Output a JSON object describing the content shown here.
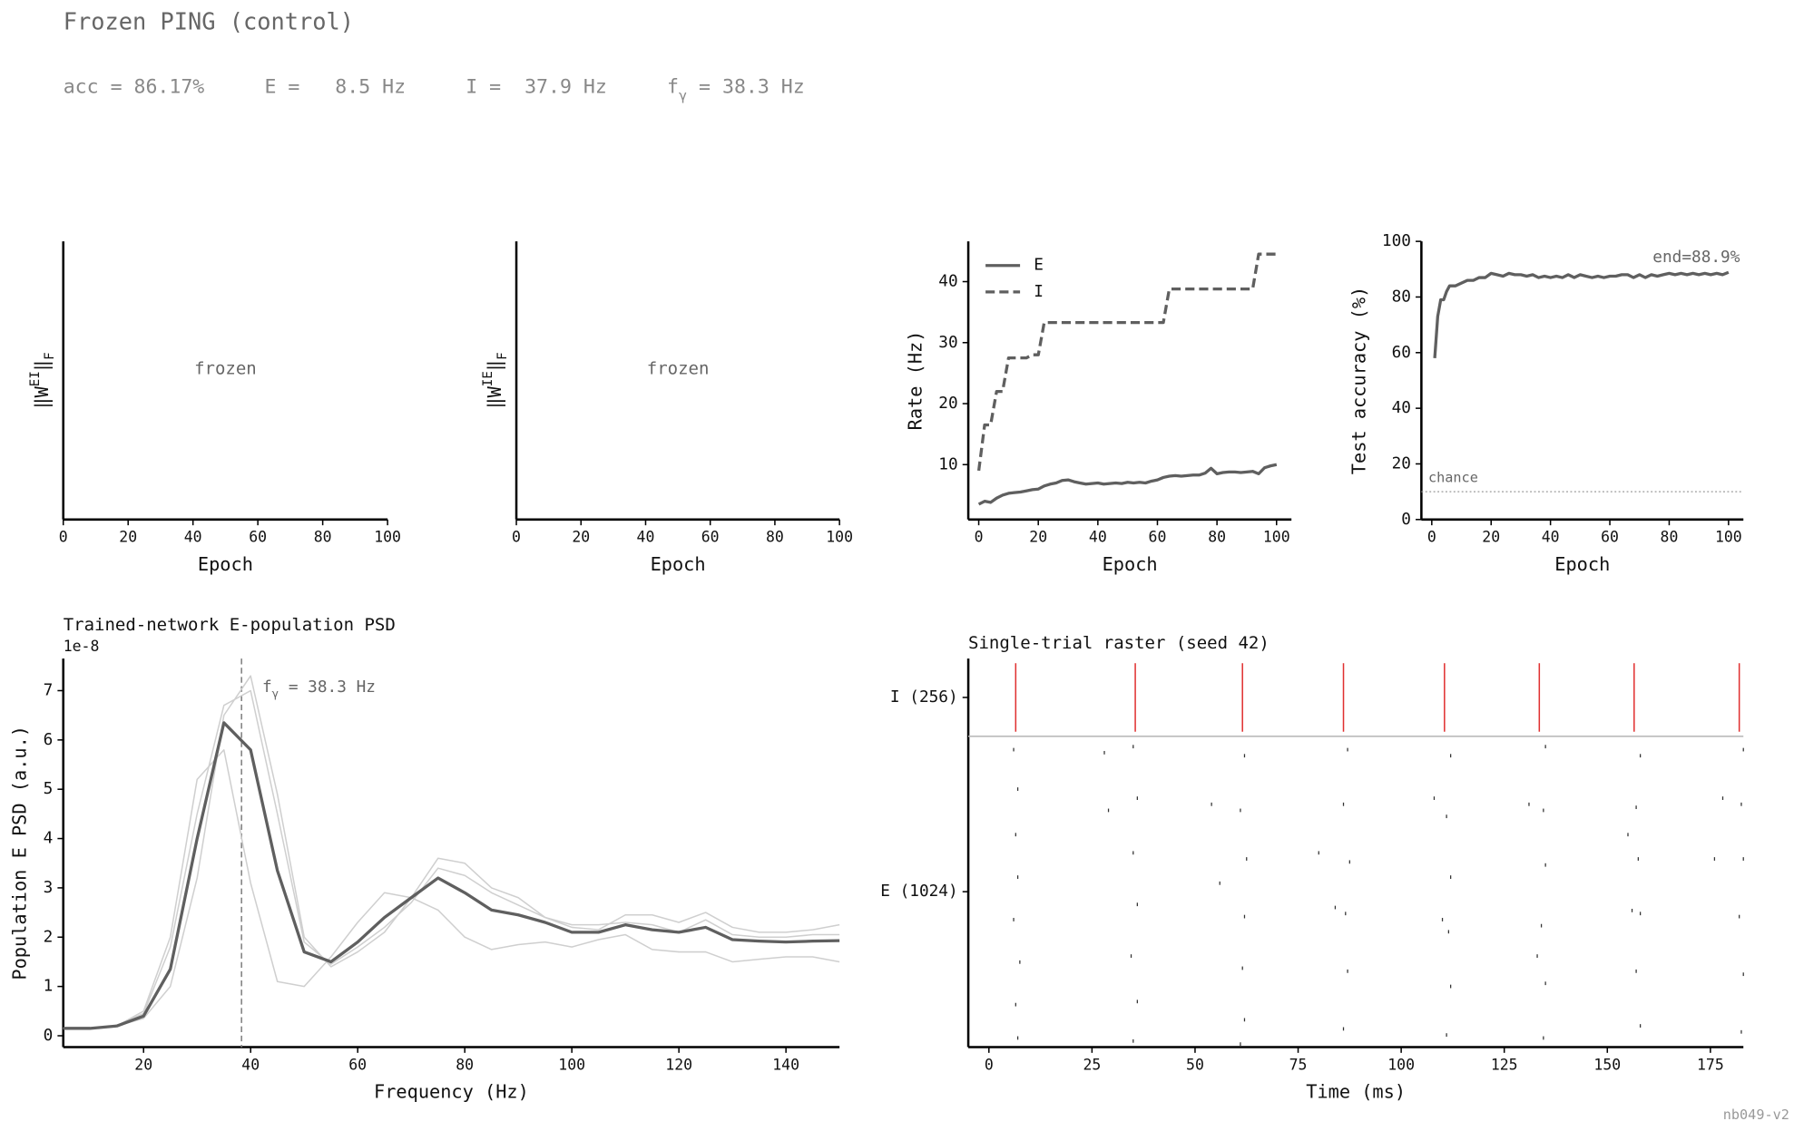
{
  "header": {
    "title": "Frozen PING (control)",
    "stats": [
      "acc = 86.17%",
      "E =   8.5 Hz",
      "I =  37.9 Hz",
      [
        {
          "text": "f"
        },
        {
          "text": "γ",
          "shift": "sub"
        },
        {
          "text": " = 38.3 Hz"
        }
      ]
    ]
  },
  "footer": "nb049-v2",
  "chart_data": [
    {
      "type": "line",
      "xlabel": "Epoch",
      "ylabel": [
        {
          "text": "‖W"
        },
        {
          "text": "EI",
          "shift": "sup"
        },
        {
          "text": "‖"
        },
        {
          "text": "F",
          "shift": "sub"
        }
      ],
      "xlim": [
        0,
        100
      ],
      "xticks": [
        0,
        20,
        40,
        60,
        80,
        100
      ],
      "annotation": "frozen",
      "series": []
    },
    {
      "type": "line",
      "xlabel": "Epoch",
      "ylabel": [
        {
          "text": "‖W"
        },
        {
          "text": "IE",
          "shift": "sup"
        },
        {
          "text": "‖"
        },
        {
          "text": "F",
          "shift": "sub"
        }
      ],
      "xlim": [
        0,
        100
      ],
      "xticks": [
        0,
        20,
        40,
        60,
        80,
        100
      ],
      "annotation": "frozen",
      "series": []
    },
    {
      "type": "line",
      "xlabel": "Epoch",
      "ylabel": "Rate (Hz)",
      "xlim": [
        -3.5,
        105
      ],
      "xticks": [
        0,
        20,
        40,
        60,
        80,
        100
      ],
      "ylim": [
        1,
        46.6
      ],
      "yticks": [
        10,
        20,
        30,
        40
      ],
      "legend": "upper left",
      "x": [
        0,
        2,
        4,
        6,
        8,
        10,
        12,
        14,
        16,
        18,
        20,
        22,
        24,
        26,
        28,
        30,
        32,
        34,
        36,
        38,
        40,
        42,
        44,
        46,
        48,
        50,
        52,
        54,
        56,
        58,
        60,
        62,
        64,
        66,
        68,
        70,
        72,
        74,
        76,
        78,
        80,
        82,
        84,
        86,
        88,
        90,
        92,
        94,
        96,
        98,
        100
      ],
      "series": [
        {
          "name": "E",
          "color": "#5f5f5f",
          "dash": false,
          "values": [
            3.5,
            4,
            3.8,
            4.5,
            5,
            5.3,
            5.4,
            5.5,
            5.7,
            5.9,
            6,
            6.5,
            6.8,
            7,
            7.4,
            7.5,
            7.2,
            7,
            6.8,
            6.9,
            7,
            6.8,
            6.9,
            7,
            6.9,
            7.1,
            7,
            7.1,
            7,
            7.3,
            7.5,
            7.9,
            8.1,
            8.2,
            8.1,
            8.2,
            8.3,
            8.3,
            8.6,
            9.4,
            8.5,
            8.7,
            8.8,
            8.8,
            8.7,
            8.8,
            8.9,
            8.5,
            9.5,
            9.8,
            10
          ]
        },
        {
          "name": "I",
          "color": "#5f5f5f",
          "dash": true,
          "values": [
            9,
            16.5,
            16.5,
            22,
            22,
            27.5,
            27.5,
            27.5,
            27.5,
            28,
            28,
            33.3,
            33.3,
            33.3,
            33.3,
            33.3,
            33.3,
            33.3,
            33.3,
            33.3,
            33.3,
            33.3,
            33.3,
            33.3,
            33.3,
            33.3,
            33.3,
            33.3,
            33.3,
            33.3,
            33.3,
            33.3,
            38.8,
            38.8,
            38.8,
            38.8,
            38.8,
            38.8,
            38.8,
            38.8,
            38.8,
            38.8,
            38.8,
            38.8,
            38.8,
            38.8,
            38.8,
            44.5,
            44.5,
            44.5,
            44.5
          ]
        }
      ]
    },
    {
      "type": "line",
      "xlabel": "Epoch",
      "ylabel": "Test accuracy (%)",
      "xlim": [
        -3.5,
        105
      ],
      "xticks": [
        0,
        20,
        40,
        60,
        80,
        100
      ],
      "ylim": [
        0,
        100
      ],
      "yticks": [
        0,
        20,
        40,
        60,
        80,
        100
      ],
      "chance_level": 10,
      "chance_label": "chance",
      "end_label": "end=88.9%",
      "x": [
        1,
        2,
        3,
        4,
        5,
        6,
        8,
        10,
        12,
        14,
        16,
        18,
        20,
        22,
        24,
        26,
        28,
        30,
        32,
        34,
        36,
        38,
        40,
        42,
        44,
        46,
        48,
        50,
        52,
        54,
        56,
        58,
        60,
        62,
        64,
        66,
        68,
        70,
        72,
        74,
        76,
        78,
        80,
        82,
        84,
        86,
        88,
        90,
        92,
        94,
        96,
        98,
        100
      ],
      "series": [
        {
          "color": "#5f5f5f",
          "dash": false,
          "values": [
            58,
            73,
            79,
            79,
            82,
            84,
            84,
            85,
            86,
            86,
            87,
            87,
            88.5,
            88,
            87.5,
            88.5,
            88,
            88,
            87.5,
            88,
            87,
            87.5,
            87,
            87.5,
            87,
            88,
            87,
            88,
            87.5,
            87,
            87.5,
            87,
            87.5,
            87.5,
            88,
            88,
            87,
            88,
            87,
            88,
            87.5,
            88,
            88.5,
            88,
            88.5,
            88,
            88.5,
            88,
            88.5,
            88,
            88.5,
            88,
            88.9
          ]
        }
      ]
    },
    {
      "type": "line",
      "title": "Trained-network E-population PSD",
      "offset_label": "1e-8",
      "xlabel": "Frequency (Hz)",
      "ylabel": "Population E PSD (a.u.)",
      "xlim": [
        5,
        150
      ],
      "xticks": [
        20,
        40,
        60,
        80,
        100,
        120,
        140
      ],
      "ylim": [
        -0.23,
        7.65
      ],
      "yticks": [
        0,
        1,
        2,
        3,
        4,
        5,
        6,
        7
      ],
      "vline": 38.3,
      "vline_label": [
        {
          "text": "f"
        },
        {
          "text": "γ",
          "shift": "sub"
        },
        {
          "text": " = 38.3 Hz"
        }
      ],
      "x": [
        5,
        10,
        15,
        20,
        25,
        30,
        35,
        40,
        45,
        50,
        55,
        60,
        65,
        70,
        75,
        80,
        85,
        90,
        95,
        100,
        105,
        110,
        115,
        120,
        125,
        130,
        135,
        140,
        145,
        150
      ],
      "series": [
        {
          "color": "#cfcfcf",
          "width": 1.2,
          "values": [
            0.15,
            0.15,
            0.2,
            0.5,
            2,
            5.2,
            5.8,
            3.1,
            1.1,
            1.0,
            1.6,
            2.3,
            2.9,
            2.8,
            2.55,
            2.0,
            1.75,
            1.85,
            1.9,
            1.8,
            1.95,
            2.05,
            1.75,
            1.7,
            1.7,
            1.5,
            1.55,
            1.6,
            1.6,
            1.5
          ]
        },
        {
          "color": "#cfcfcf",
          "width": 1.2,
          "values": [
            0.15,
            0.15,
            0.2,
            0.35,
            1.0,
            3.2,
            6.5,
            7.3,
            4.9,
            2.0,
            1.4,
            1.7,
            2.1,
            2.8,
            3.6,
            3.5,
            3.0,
            2.8,
            2.4,
            2.2,
            2.15,
            2.45,
            2.45,
            2.3,
            2.5,
            2.2,
            2.1,
            2.1,
            2.15,
            2.25
          ]
        },
        {
          "color": "#cfcfcf",
          "width": 1.2,
          "values": [
            0.15,
            0.15,
            0.2,
            0.45,
            1.8,
            4.5,
            6.7,
            7.0,
            4.5,
            1.9,
            1.45,
            1.8,
            2.2,
            2.7,
            3.4,
            3.25,
            2.9,
            2.65,
            2.4,
            2.25,
            2.25,
            2.3,
            2.25,
            2.1,
            2.35,
            2.05,
            2.0,
            2.0,
            2.05,
            2.05
          ]
        },
        {
          "color": "#5f5f5f",
          "width": 2.6,
          "values": [
            0.15,
            0.15,
            0.2,
            0.4,
            1.35,
            4,
            6.35,
            5.8,
            3.35,
            1.7,
            1.5,
            1.9,
            2.4,
            2.8,
            3.2,
            2.9,
            2.55,
            2.45,
            2.3,
            2.1,
            2.1,
            2.25,
            2.15,
            2.1,
            2.2,
            1.95,
            1.92,
            1.9,
            1.92,
            1.93
          ]
        }
      ]
    },
    {
      "type": "raster",
      "title": "Single-trial raster (seed 42)",
      "xlabel": "Time (ms)",
      "xlim": [
        -5,
        183
      ],
      "xticks": [
        0,
        25,
        50,
        75,
        100,
        125,
        150,
        175
      ],
      "ylim": [
        0,
        1280
      ],
      "yticks": [
        {
          "value": 1152,
          "label": "I (256)"
        },
        {
          "value": 512,
          "label": "E (1024)"
        }
      ],
      "hline": 1024,
      "series": [
        {
          "color": "#333333",
          "x": [
            6,
            7,
            6.5,
            7,
            6,
            7.5,
            6.5,
            7,
            28,
            29,
            35,
            36,
            35,
            36,
            34.5,
            36,
            35,
            54,
            56,
            62,
            61,
            62.5,
            62,
            61.5,
            62,
            61,
            80,
            84,
            87,
            86,
            87.5,
            86.5,
            87,
            86,
            108,
            110,
            112,
            111,
            112,
            111.5,
            112,
            111,
            131,
            133,
            135,
            134.5,
            135,
            134,
            135,
            134.5,
            155,
            156,
            158,
            157,
            157.5,
            158,
            157,
            158,
            176,
            178,
            183,
            182.5,
            183,
            182,
            183,
            182.5
          ],
          "values": [
            980,
            850,
            700,
            560,
            420,
            280,
            140,
            30,
            970,
            780,
            990,
            820,
            640,
            470,
            300,
            150,
            20,
            800,
            540,
            960,
            780,
            620,
            430,
            260,
            90,
            10,
            640,
            460,
            980,
            800,
            610,
            440,
            250,
            60,
            820,
            420,
            960,
            760,
            560,
            380,
            200,
            40,
            800,
            300,
            990,
            780,
            600,
            400,
            210,
            30,
            700,
            450,
            960,
            790,
            620,
            440,
            250,
            70,
            620,
            820,
            980,
            800,
            620,
            430,
            240,
            50
          ]
        },
        {
          "color": "#e03030",
          "x": [
            6.5,
            35.5,
            61.5,
            86,
            110.5,
            133.5,
            156.5,
            182
          ]
        }
      ]
    }
  ]
}
